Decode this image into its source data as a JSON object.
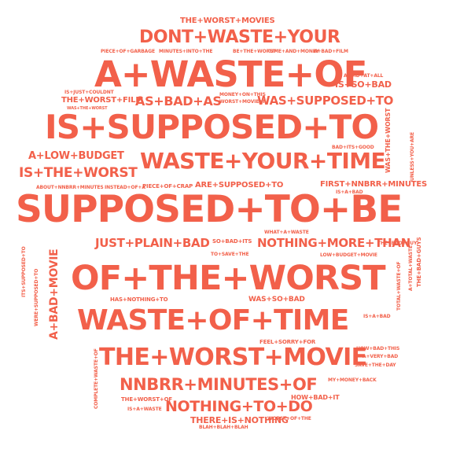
{
  "color": "#f2604a",
  "words": [
    "THE+WORST+MOVIES",
    "DONT+WASTE+YOUR",
    "PIECE+OF+GARBAGE",
    "MINUTES+INTO+THE",
    "BE+THE+WORST",
    "TIME+AND+MONEY",
    "A+BAD+FILM",
    "A+WASTE+OF",
    "AVOID+AT+ALL",
    "IS+SO+BAD",
    "THE+WORST+FILM",
    "AS+BAD+AS",
    "MONEY+ON+THIS",
    "WORST+MOVIE+I",
    "WAS+SUPPOSED+TO",
    "IS+SUPPOSED+TO",
    "WAS+THE+WORST",
    "A+LOW+BUDGET",
    "WASTE+YOUR+TIME",
    "IS+THE+WORST",
    "BAD+ITS+GOOD",
    "ABOUT+NNBRR+MINUTES",
    "INSTEAD+OF+A",
    "PIECE+OF+CRAP",
    "ARE+SUPPOSED+TO",
    "FIRST+NNBRR+MINUTES",
    "IS+A+BAD",
    "SUPPOSED+TO+BE",
    "WHAT+A+WASTE",
    "JUST+PLAIN+BAD",
    "SO+BAD+ITS",
    "NOTHING+MORE+THAN",
    "TO+SAVE+THE",
    "OF+THE+WORST",
    "LOW+BUDGET+MOVIE",
    "THE+BAD+GUY",
    "A+BAD+MOVIE",
    "HAS+NOTHING+TO",
    "WASTE+OF+TIME",
    "WAS+SO+BAD",
    "IS+A+BAD",
    "FEEL+SORRY+FOR",
    "HOW+BAD+THIS",
    "A+VERY+BAD",
    "THE+WORST+MOVIE",
    "SAVE+THE+DAY",
    "NNBRR+MINUTES+OF",
    "HOW+BAD+IT",
    "THE+WORST+OF",
    "NOTHING+TO+DO",
    "THERE+IS+NOTHING",
    "BLAH+BLAH+BLAH",
    "WORST+OF+THE",
    "IS+A+WASTE",
    "MY+MONEY+BACK",
    "COMPLETE+WASTE+OF",
    "WERE+SUPPOSED+TO",
    "ITS+SUPPOSED+TO",
    "UNLESS+YOU+ARE",
    "WAS+THE+WORST",
    "TOTAL+WASTE+OF",
    "A+TOTAL+WASTE",
    "THE+BAD+GUYS",
    "IS+JUST+COULDNT"
  ]
}
